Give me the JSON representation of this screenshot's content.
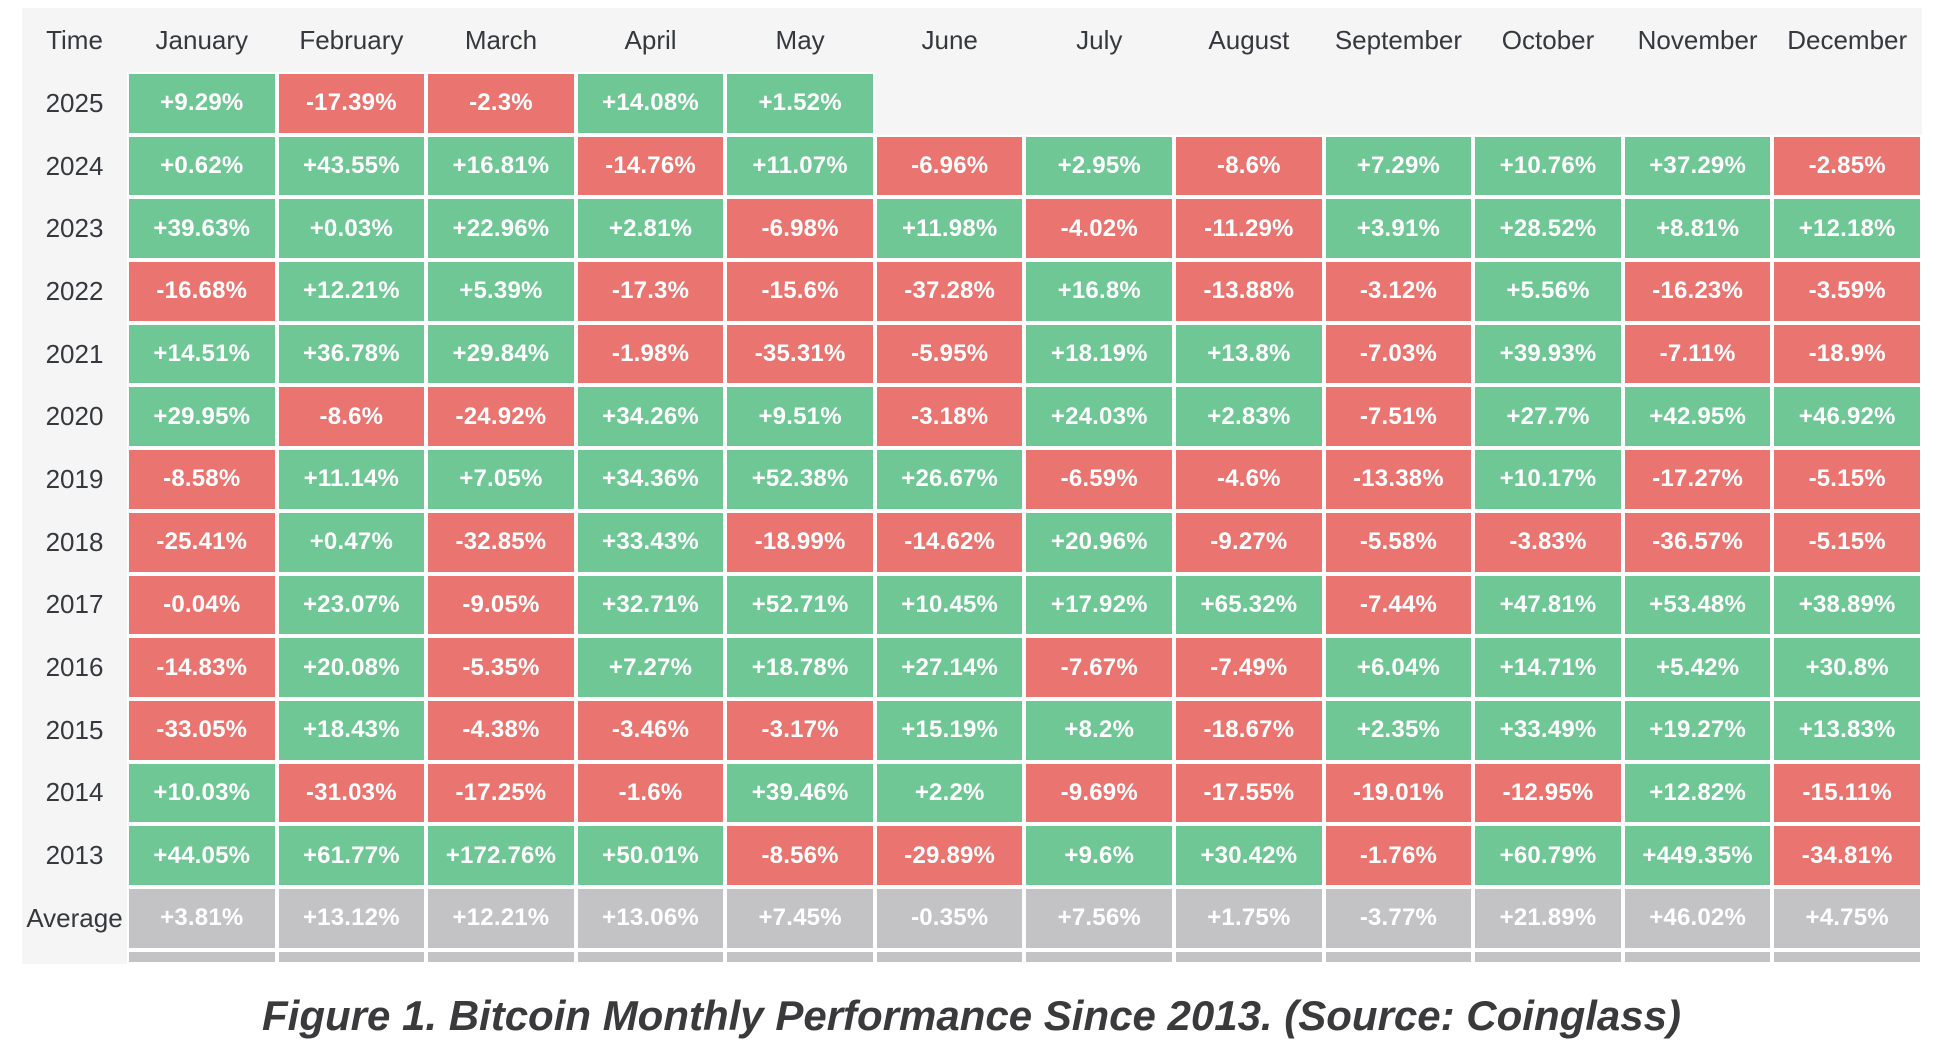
{
  "chart_data": {
    "type": "heatmap",
    "title": "Figure 1. Bitcoin Monthly Performance Since 2013. (Source: Coinglass)",
    "corner_label": "Time",
    "columns": [
      "January",
      "February",
      "March",
      "April",
      "May",
      "June",
      "July",
      "August",
      "September",
      "October",
      "November",
      "December"
    ],
    "rows": [
      "2025",
      "2024",
      "2023",
      "2022",
      "2021",
      "2020",
      "2019",
      "2018",
      "2017",
      "2016",
      "2015",
      "2014",
      "2013",
      "Average"
    ],
    "values": [
      [
        9.29,
        -17.39,
        -2.3,
        14.08,
        1.52,
        null,
        null,
        null,
        null,
        null,
        null,
        null
      ],
      [
        0.62,
        43.55,
        16.81,
        -14.76,
        11.07,
        -6.96,
        2.95,
        -8.6,
        7.29,
        10.76,
        37.29,
        -2.85
      ],
      [
        39.63,
        0.03,
        22.96,
        2.81,
        -6.98,
        11.98,
        -4.02,
        -11.29,
        3.91,
        28.52,
        8.81,
        12.18
      ],
      [
        -16.68,
        12.21,
        5.39,
        -17.3,
        -15.6,
        -37.28,
        16.8,
        -13.88,
        -3.12,
        5.56,
        -16.23,
        -3.59
      ],
      [
        14.51,
        36.78,
        29.84,
        -1.98,
        -35.31,
        -5.95,
        18.19,
        13.8,
        -7.03,
        39.93,
        -7.11,
        -18.9
      ],
      [
        29.95,
        -8.6,
        -24.92,
        34.26,
        9.51,
        -3.18,
        24.03,
        2.83,
        -7.51,
        27.7,
        42.95,
        46.92
      ],
      [
        -8.58,
        11.14,
        7.05,
        34.36,
        52.38,
        26.67,
        -6.59,
        -4.6,
        -13.38,
        10.17,
        -17.27,
        -5.15
      ],
      [
        -25.41,
        0.47,
        -32.85,
        33.43,
        -18.99,
        -14.62,
        20.96,
        -9.27,
        -5.58,
        -3.83,
        -36.57,
        -5.15
      ],
      [
        -0.04,
        23.07,
        -9.05,
        32.71,
        52.71,
        10.45,
        17.92,
        65.32,
        -7.44,
        47.81,
        53.48,
        38.89
      ],
      [
        -14.83,
        20.08,
        -5.35,
        7.27,
        18.78,
        27.14,
        -7.67,
        -7.49,
        6.04,
        14.71,
        5.42,
        30.8
      ],
      [
        -33.05,
        18.43,
        -4.38,
        -3.46,
        -3.17,
        15.19,
        8.2,
        -18.67,
        2.35,
        33.49,
        19.27,
        13.83
      ],
      [
        10.03,
        -31.03,
        -17.25,
        -1.6,
        39.46,
        2.2,
        -9.69,
        -17.55,
        -19.01,
        -12.95,
        12.82,
        -15.11
      ],
      [
        44.05,
        61.77,
        172.76,
        50.01,
        -8.56,
        -29.89,
        9.6,
        30.42,
        -1.76,
        60.79,
        449.35,
        -34.81
      ],
      [
        3.81,
        13.12,
        12.21,
        13.06,
        7.45,
        -0.35,
        7.56,
        1.75,
        -3.77,
        21.89,
        46.02,
        4.75
      ]
    ],
    "value_format": "signed percent, white text on colored cell",
    "legend": "green = positive month, red = negative month, gray = average row"
  },
  "colors": {
    "green": "#6ec794",
    "red": "#ea7470",
    "gray": "#c3c3c5",
    "panel": "#f5f5f6",
    "label_text": "#35383d",
    "cell_text": "#ffffff",
    "caption_text": "#3a3a3c"
  }
}
